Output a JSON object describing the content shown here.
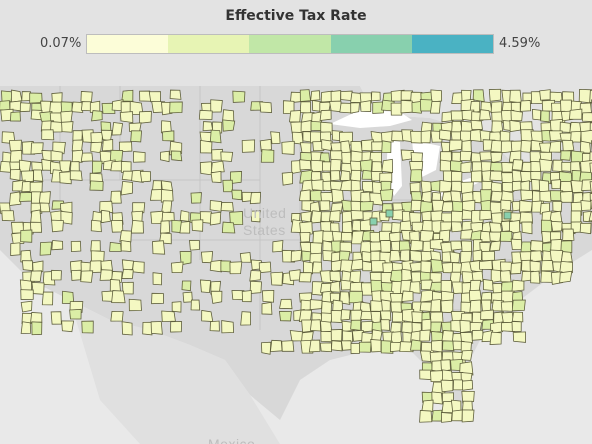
{
  "legend": {
    "title": "Effective Tax Rate",
    "min_label": "0.07%",
    "max_label": "4.59%",
    "colors": [
      "#fcfdd8",
      "#e7f4b4",
      "#c1e7a7",
      "#88d0ae",
      "#4ab2c3"
    ]
  },
  "map": {
    "country_label": "United States",
    "country_label_line1": "United",
    "country_label_line2": "States",
    "neighbor_label": "Mexico",
    "colors": {
      "background": "#e9e9e9",
      "land": "#d9d9d9",
      "water": "#ffffff",
      "county_fill": "#f4f8c2",
      "county_fill_mid": "#dbeea6",
      "county_stroke": "#5f5f3d",
      "state_border": "#c8c8c8"
    }
  }
}
